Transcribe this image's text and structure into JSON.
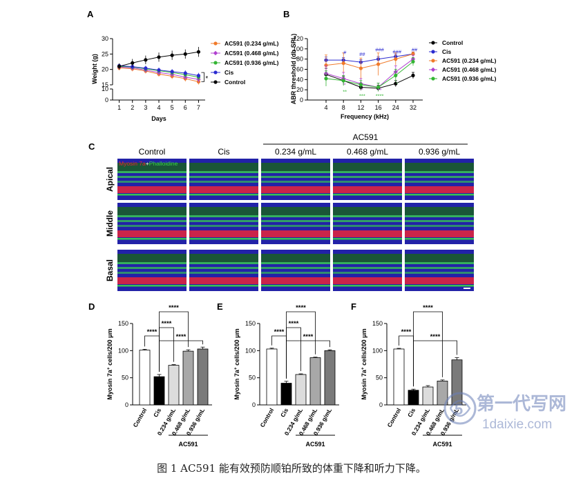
{
  "caption": "图 1 AC591 能有效预防顺铂所致的体重下降和听力下降。",
  "watermark": {
    "brand": "第一代写网",
    "url": "1daixie.com"
  },
  "colors": {
    "control": "#000000",
    "cis": "#2a2ad0",
    "low": "#f07a2a",
    "mid": "#b03fd0",
    "high": "#33b533",
    "bar_control": "#ffffff",
    "bar_cis": "#000000",
    "bar_low": "#dcdcdc",
    "bar_mid": "#a8a8a8",
    "bar_high": "#7a7a7a",
    "myosin": "#e8253a",
    "phalloidine": "#39d44a",
    "dapi": "#2222a8"
  },
  "panel_c": {
    "label": "C",
    "group_label": "AC591",
    "columns": [
      "Control",
      "Cis",
      "0.234 g/mL",
      "0.468 g/mL",
      "0.936 g/mL"
    ],
    "rows": [
      "Apical",
      "Middle",
      "Basal"
    ],
    "stain_red": "Myosin 7a",
    "stain_plus": "+",
    "stain_green": "Phalloidine"
  },
  "chart_data": [
    {
      "panel": "A",
      "type": "line",
      "xlabel": "Days",
      "ylabel": "Weight (g)",
      "x": [
        1,
        2,
        3,
        4,
        5,
        6,
        7
      ],
      "xlim": [
        0.5,
        7.5
      ],
      "ylim": [
        0,
        30
      ],
      "axis_break": [
        10,
        15
      ],
      "yticks": [
        "0",
        "10",
        "15",
        "20",
        "25",
        "30"
      ],
      "legend_position": "right",
      "annotation": "*",
      "series": [
        {
          "name": "AC591 (0.234 g/mL)",
          "key": "low",
          "values": [
            20.5,
            20.2,
            19.5,
            18.5,
            17.8,
            17.0,
            16.0
          ],
          "err": [
            0.8,
            0.8,
            0.8,
            0.8,
            0.9,
            0.9,
            0.9
          ]
        },
        {
          "name": "AC591 (0.468 g/mL)",
          "key": "mid",
          "values": [
            20.8,
            20.5,
            19.8,
            19.0,
            18.4,
            17.5,
            16.8
          ],
          "err": [
            0.8,
            0.8,
            0.8,
            0.9,
            0.9,
            0.9,
            1.0
          ]
        },
        {
          "name": "AC591 (0.936 g/mL)",
          "key": "high",
          "values": [
            21.0,
            20.8,
            20.2,
            19.6,
            19.0,
            18.3,
            17.5
          ],
          "err": [
            0.8,
            0.8,
            0.9,
            0.9,
            0.9,
            1.0,
            1.0
          ]
        },
        {
          "name": "Cis",
          "key": "cis",
          "values": [
            21.2,
            20.9,
            20.4,
            19.8,
            19.3,
            18.8,
            18.0
          ],
          "err": [
            0.7,
            0.7,
            0.8,
            0.8,
            0.8,
            0.9,
            0.9
          ]
        },
        {
          "name": "Control",
          "key": "control",
          "values": [
            21.0,
            22.1,
            23.1,
            24.0,
            24.6,
            25.0,
            25.7
          ],
          "err": [
            1.0,
            1.3,
            1.4,
            1.5,
            1.5,
            1.5,
            1.6
          ]
        }
      ]
    },
    {
      "panel": "B",
      "type": "line",
      "xlabel": "Frequency (kHz)",
      "ylabel": "ABR threshold (db SPL)",
      "categories": [
        "4",
        "8",
        "12",
        "16",
        "24",
        "32"
      ],
      "ylim": [
        0,
        120
      ],
      "yticks": [
        "0",
        "20",
        "40",
        "60",
        "80",
        "100",
        "120"
      ],
      "legend_position": "right",
      "series": [
        {
          "name": "Control",
          "key": "control",
          "values": [
            50,
            38,
            25,
            23,
            32,
            48
          ],
          "err": [
            12,
            8,
            6,
            6,
            6,
            6
          ]
        },
        {
          "name": "Cis",
          "key": "cis",
          "values": [
            78,
            78,
            74,
            80,
            85,
            90
          ],
          "err": [
            6,
            5,
            5,
            5,
            5,
            3
          ]
        },
        {
          "name": "AC591 (0.234 g/mL)",
          "key": "low",
          "values": [
            68,
            72,
            62,
            70,
            80,
            90
          ],
          "err": [
            20,
            20,
            20,
            22,
            12,
            4
          ]
        },
        {
          "name": "AC591 (0.468 g/mL)",
          "key": "mid",
          "values": [
            52,
            42,
            32,
            25,
            55,
            80
          ],
          "err": [
            15,
            12,
            10,
            8,
            12,
            8
          ]
        },
        {
          "name": "AC591 (0.936 g/mL)",
          "key": "high",
          "values": [
            42,
            38,
            30,
            25,
            48,
            75
          ],
          "err": [
            15,
            10,
            8,
            8,
            12,
            8
          ]
        }
      ],
      "annotations": [
        {
          "text": "#",
          "key": "cis",
          "cat": "8",
          "y": 90
        },
        {
          "text": "##",
          "key": "cis",
          "cat": "12",
          "y": 86
        },
        {
          "text": "###",
          "key": "cis",
          "cat": "16",
          "y": 95
        },
        {
          "text": "###",
          "key": "cis",
          "cat": "24",
          "y": 91
        },
        {
          "text": "##",
          "key": "cis",
          "cat": "32",
          "y": 95
        },
        {
          "text": "*",
          "key": "mid",
          "cat": "8",
          "y": 26
        },
        {
          "text": "*",
          "key": "mid",
          "cat": "12",
          "y": 17
        },
        {
          "text": "**",
          "key": "mid",
          "cat": "16",
          "y": 16
        },
        {
          "text": "*",
          "key": "mid",
          "cat": "24",
          "y": 28
        },
        {
          "text": "**",
          "key": "high",
          "cat": "8",
          "y": 13
        },
        {
          "text": "***",
          "key": "high",
          "cat": "12",
          "y": 5
        },
        {
          "text": "****",
          "key": "high",
          "cat": "16",
          "y": 5
        },
        {
          "text": "*",
          "key": "high",
          "cat": "24",
          "y": 28
        }
      ]
    },
    {
      "panel": "D",
      "type": "bar",
      "ylabel": "Myosin 7a⁺ cells/200 μm",
      "ylabel_parts": [
        "Myosin 7a",
        "+",
        " cells/200 μm"
      ],
      "categories": [
        "Control",
        "Cis",
        "0.234 g/mL",
        "0.468 g/mL",
        "0.936 g/mL"
      ],
      "values": [
        101,
        52,
        73,
        99,
        103
      ],
      "err": [
        1.5,
        4,
        1.2,
        2.5,
        3.5
      ],
      "ylim": [
        0,
        150
      ],
      "yticks": [
        "0",
        "50",
        "100",
        "150"
      ],
      "group_label": "AC591",
      "significance": [
        {
          "from": 0,
          "to": 1,
          "text": "****"
        },
        {
          "from": 1,
          "to": 4,
          "text": "****"
        },
        {
          "from": 1,
          "to": 2,
          "text": "****"
        },
        {
          "from": 1,
          "to": 3,
          "text": "****"
        }
      ]
    },
    {
      "panel": "E",
      "type": "bar",
      "ylabel": "Myosin 7a⁺ cells/200 μm",
      "ylabel_parts": [
        "Myosin 7a",
        "+",
        " cells/200 μm"
      ],
      "categories": [
        "Control",
        "Cis",
        "0.234 g/mL",
        "0.468 g/mL",
        "0.936 g/mL"
      ],
      "values": [
        103,
        40,
        56,
        87,
        100
      ],
      "err": [
        1.5,
        3.5,
        1.2,
        1.0,
        1.5
      ],
      "ylim": [
        0,
        150
      ],
      "yticks": [
        "0",
        "50",
        "100",
        "150"
      ],
      "group_label": "AC591",
      "significance": [
        {
          "from": 0,
          "to": 1,
          "text": "****"
        },
        {
          "from": 1,
          "to": 4,
          "text": "****"
        },
        {
          "from": 1,
          "to": 2,
          "text": "****"
        },
        {
          "from": 1,
          "to": 3,
          "text": "****"
        }
      ]
    },
    {
      "panel": "F",
      "type": "bar",
      "ylabel": "Myosin 7a⁺ cells/200 μm",
      "ylabel_parts": [
        "Myosin 7a",
        "+",
        " cells/200 μm"
      ],
      "categories": [
        "Control",
        "Cis",
        "0.234 g/mL",
        "0.468 g/mL",
        "0.936 g/mL"
      ],
      "values": [
        103,
        27,
        33,
        44,
        83
      ],
      "err": [
        1.2,
        2.0,
        2.5,
        2.0,
        4.0
      ],
      "ylim": [
        0,
        150
      ],
      "yticks": [
        "0",
        "50",
        "100",
        "150"
      ],
      "group_label": "AC591",
      "significance": [
        {
          "from": 0,
          "to": 1,
          "text": "****"
        },
        {
          "from": 1,
          "to": 4,
          "text": "****"
        },
        {
          "from": 1,
          "to": 3,
          "text": "****"
        }
      ]
    }
  ]
}
